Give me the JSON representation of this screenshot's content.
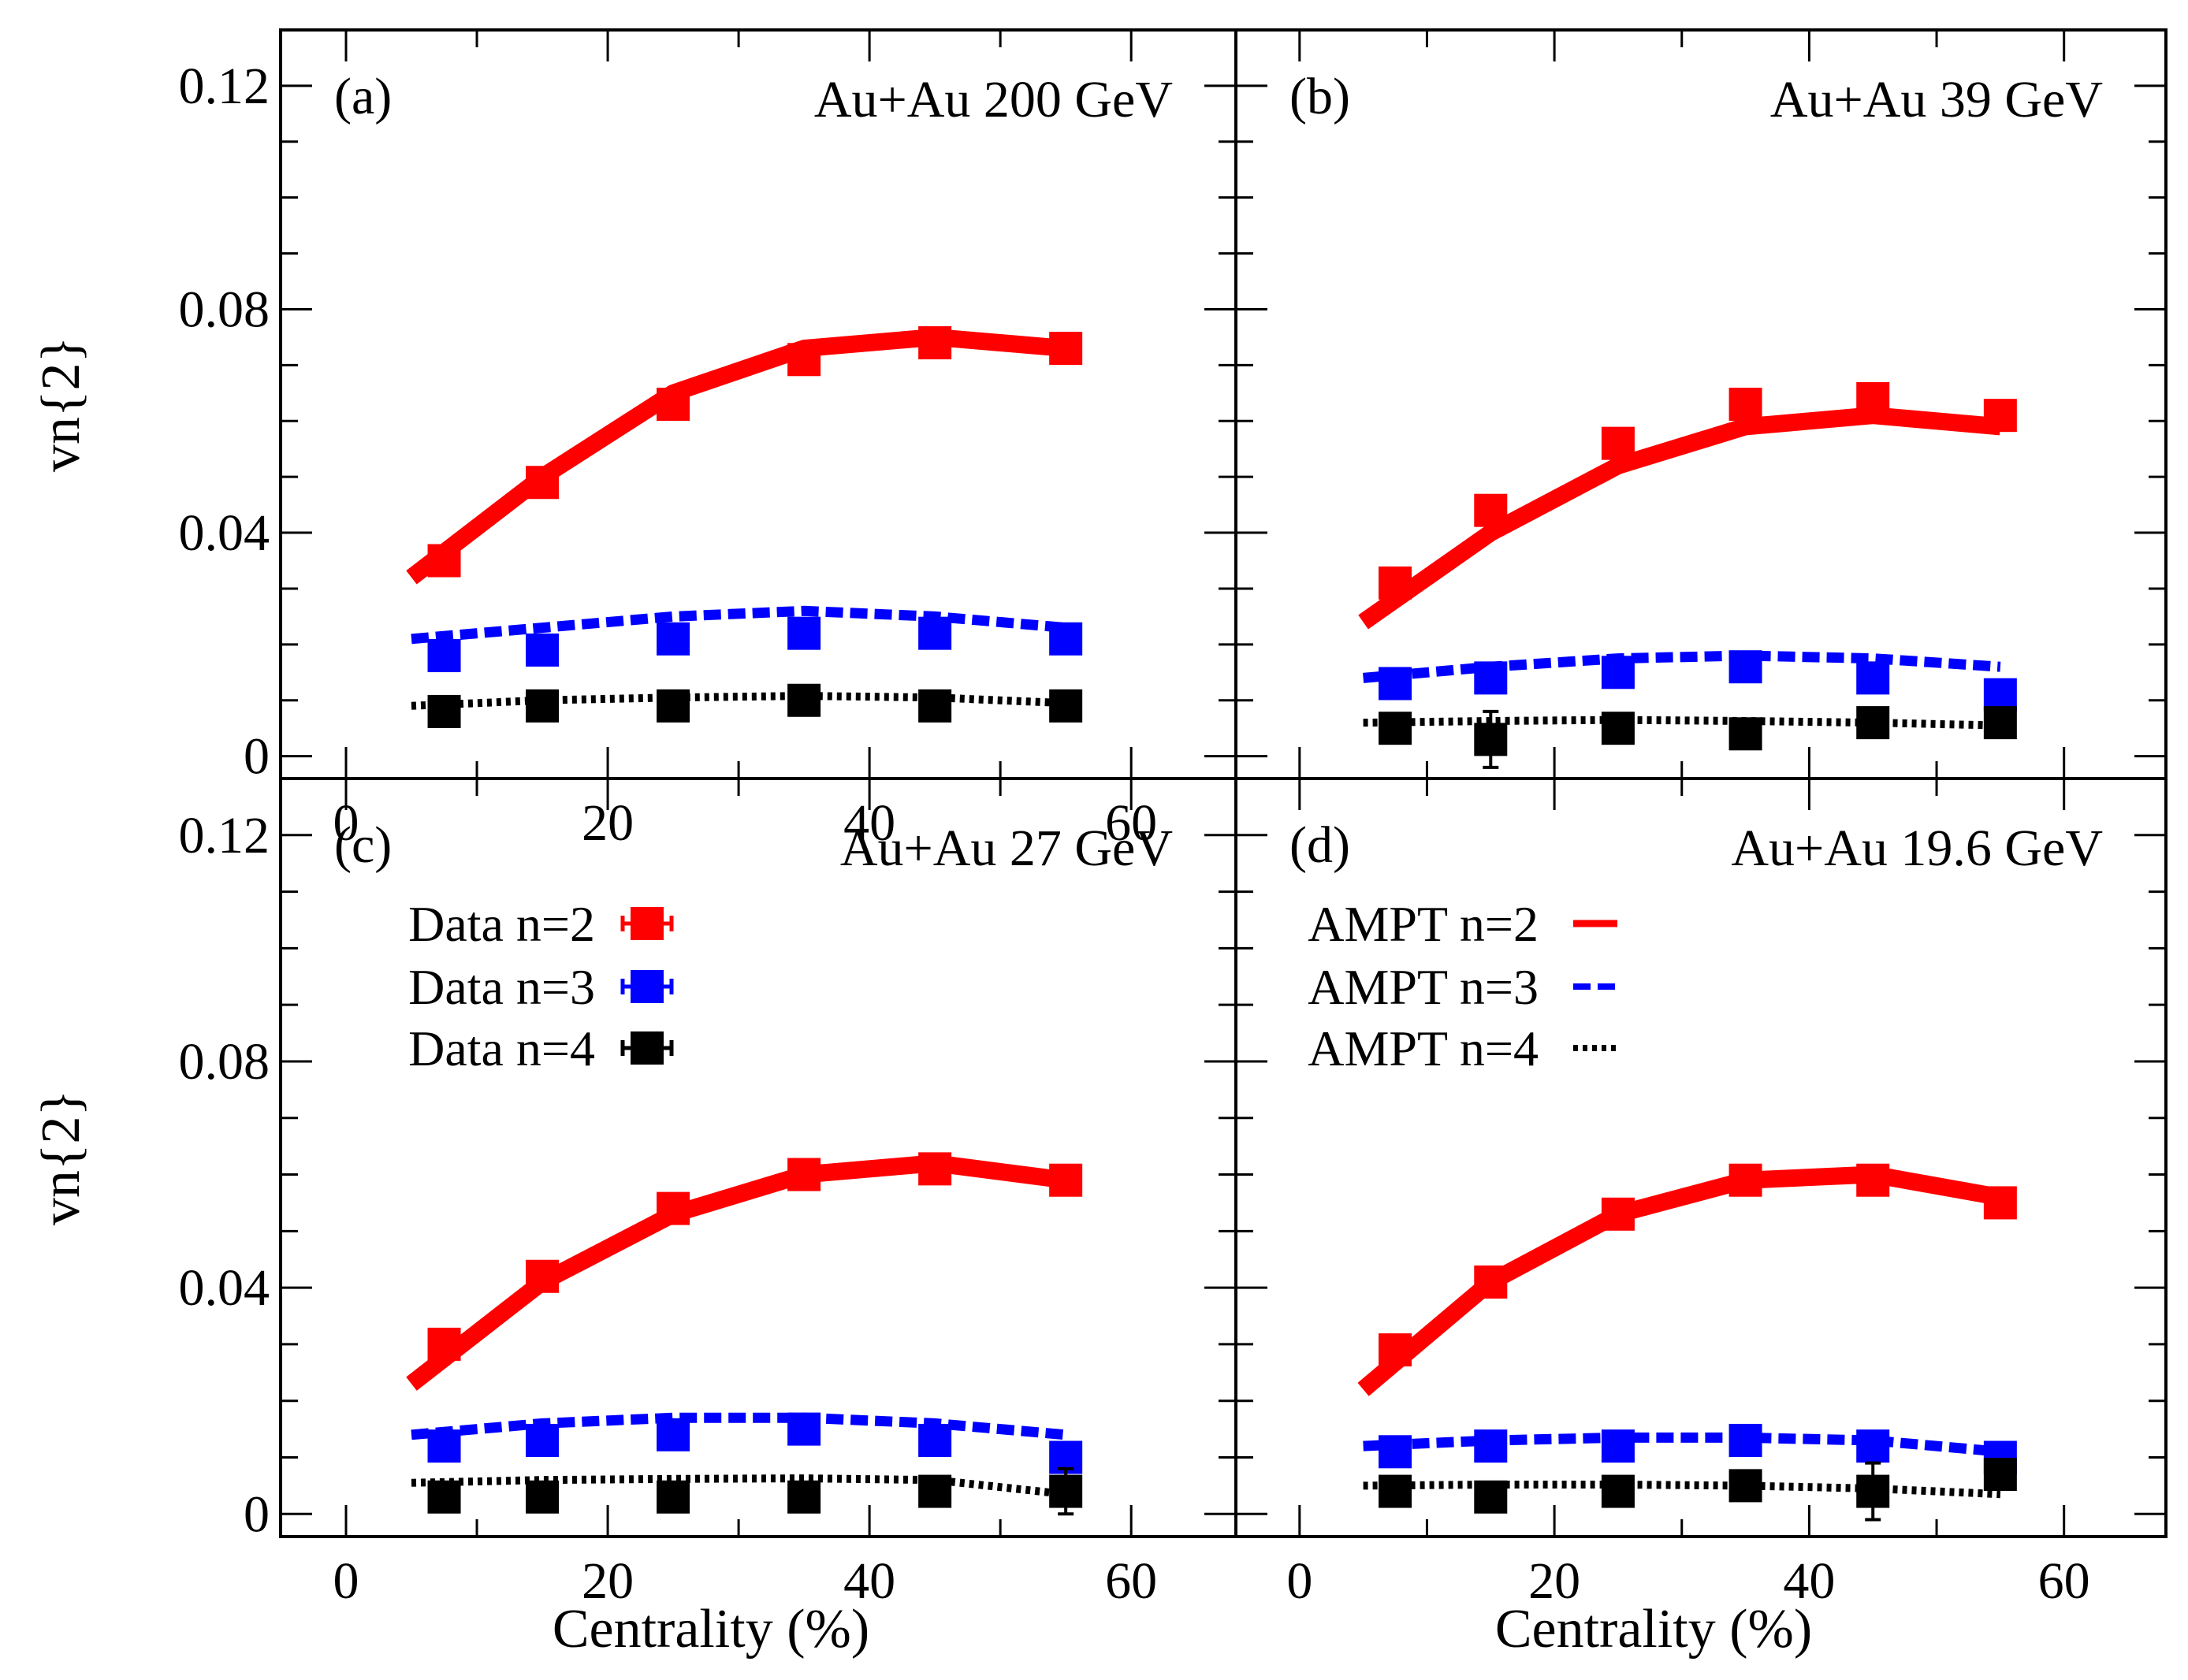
{
  "chart_data": [
    {
      "type": "line",
      "panel_label": "(a)",
      "title": "Au+Au 200 GeV",
      "xlabel": "",
      "ylabel": "vn{2}",
      "xlim": [
        -5,
        68
      ],
      "ylim": [
        -0.004,
        0.13
      ],
      "xticks": [
        "0",
        "20",
        "40",
        "60"
      ],
      "yticks": [
        "0",
        "0.04",
        "0.08",
        "0.12"
      ],
      "data_x": [
        7.5,
        15,
        25,
        35,
        45,
        55
      ],
      "series": [
        {
          "name": "Data n=2",
          "kind": "data",
          "color": "#ff0000",
          "values": [
            0.035,
            0.049,
            0.063,
            0.071,
            0.074,
            0.073
          ],
          "errors": [
            0.001,
            0.001,
            0.001,
            0.001,
            0.001,
            0.001
          ]
        },
        {
          "name": "Data n=3",
          "kind": "data",
          "color": "#0000ff",
          "values": [
            0.018,
            0.019,
            0.021,
            0.022,
            0.022,
            0.021
          ],
          "errors": [
            0.001,
            0.001,
            0.001,
            0.001,
            0.001,
            0.001
          ]
        },
        {
          "name": "Data n=4",
          "kind": "data",
          "color": "#000000",
          "values": [
            0.008,
            0.009,
            0.009,
            0.01,
            0.009,
            0.009
          ],
          "errors": [
            0.001,
            0.001,
            0.001,
            0.001,
            0.001,
            0.001
          ]
        }
      ],
      "model_x": [
        5,
        15,
        25,
        35,
        45,
        55
      ],
      "model_series": [
        {
          "name": "AMPT n=2",
          "style": "solid",
          "color": "#ff0000",
          "values": [
            0.032,
            0.05,
            0.065,
            0.073,
            0.075,
            0.073
          ]
        },
        {
          "name": "AMPT n=3",
          "style": "dashed",
          "color": "#0000ff",
          "values": [
            0.021,
            0.023,
            0.025,
            0.026,
            0.025,
            0.023
          ]
        },
        {
          "name": "AMPT n=4",
          "style": "dotted",
          "color": "#000000",
          "values": [
            0.009,
            0.01,
            0.0105,
            0.0108,
            0.0105,
            0.0095
          ]
        }
      ]
    },
    {
      "type": "line",
      "panel_label": "(b)",
      "title": "Au+Au 39 GeV",
      "xlabel": "",
      "ylabel": "",
      "xlim": [
        -5,
        68
      ],
      "ylim": [
        -0.004,
        0.13
      ],
      "xticks": [],
      "yticks": [],
      "data_x": [
        7.5,
        15,
        25,
        35,
        45,
        55
      ],
      "series": [
        {
          "name": "Data n=2",
          "kind": "data",
          "color": "#ff0000",
          "values": [
            0.031,
            0.044,
            0.056,
            0.063,
            0.064,
            0.061
          ],
          "errors": [
            0.001,
            0.001,
            0.001,
            0.001,
            0.001,
            0.001
          ]
        },
        {
          "name": "Data n=3",
          "kind": "data",
          "color": "#0000ff",
          "values": [
            0.013,
            0.014,
            0.015,
            0.016,
            0.014,
            0.011
          ],
          "errors": [
            0.001,
            0.001,
            0.001,
            0.001,
            0.001,
            0.001
          ]
        },
        {
          "name": "Data n=4",
          "kind": "data",
          "color": "#000000",
          "values": [
            0.005,
            0.003,
            0.005,
            0.004,
            0.006,
            0.006
          ],
          "errors": [
            0.001,
            0.005,
            0.001,
            0.002,
            0.001,
            0.001
          ]
        }
      ],
      "model_x": [
        5,
        15,
        25,
        35,
        45,
        55
      ],
      "model_series": [
        {
          "name": "AMPT n=2",
          "style": "solid",
          "color": "#ff0000",
          "values": [
            0.024,
            0.04,
            0.052,
            0.059,
            0.061,
            0.059
          ]
        },
        {
          "name": "AMPT n=3",
          "style": "dashed",
          "color": "#0000ff",
          "values": [
            0.014,
            0.016,
            0.0175,
            0.018,
            0.0175,
            0.016
          ]
        },
        {
          "name": "AMPT n=4",
          "style": "dotted",
          "color": "#000000",
          "values": [
            0.006,
            0.0063,
            0.0065,
            0.0063,
            0.006,
            0.0055
          ]
        }
      ]
    },
    {
      "type": "line",
      "panel_label": "(c)",
      "title": "Au+Au 27 GeV",
      "xlabel": "Centrality (%)",
      "ylabel": "vn{2}",
      "xlim": [
        -5,
        68
      ],
      "ylim": [
        -0.004,
        0.13
      ],
      "xticks": [
        "0",
        "20",
        "40",
        "60"
      ],
      "yticks": [
        "0",
        "0.04",
        "0.08",
        "0.12"
      ],
      "data_x": [
        7.5,
        15,
        25,
        35,
        45,
        55
      ],
      "series": [
        {
          "name": "Data n=2",
          "kind": "data",
          "color": "#ff0000",
          "values": [
            0.03,
            0.042,
            0.054,
            0.06,
            0.061,
            0.059
          ],
          "errors": [
            0.001,
            0.001,
            0.001,
            0.001,
            0.001,
            0.001
          ]
        },
        {
          "name": "Data n=3",
          "kind": "data",
          "color": "#0000ff",
          "values": [
            0.012,
            0.013,
            0.014,
            0.015,
            0.013,
            0.01
          ],
          "errors": [
            0.001,
            0.001,
            0.001,
            0.001,
            0.001,
            0.001
          ]
        },
        {
          "name": "Data n=4",
          "kind": "data",
          "color": "#000000",
          "values": [
            0.003,
            0.003,
            0.003,
            0.003,
            0.004,
            0.004
          ],
          "errors": [
            0.001,
            0.001,
            0.001,
            0.001,
            0.001,
            0.004
          ]
        }
      ],
      "model_x": [
        5,
        15,
        25,
        35,
        45,
        55
      ],
      "model_series": [
        {
          "name": "AMPT n=2",
          "style": "solid",
          "color": "#ff0000",
          "values": [
            0.023,
            0.041,
            0.053,
            0.06,
            0.062,
            0.059
          ]
        },
        {
          "name": "AMPT n=3",
          "style": "dashed",
          "color": "#0000ff",
          "values": [
            0.014,
            0.016,
            0.017,
            0.017,
            0.016,
            0.014
          ]
        },
        {
          "name": "AMPT n=4",
          "style": "dotted",
          "color": "#000000",
          "values": [
            0.0055,
            0.006,
            0.0062,
            0.0063,
            0.006,
            0.0035
          ]
        }
      ]
    },
    {
      "type": "line",
      "panel_label": "(d)",
      "title": "Au+Au 19.6 GeV",
      "xlabel": "Centrality (%)",
      "ylabel": "",
      "xlim": [
        -5,
        68
      ],
      "ylim": [
        -0.004,
        0.13
      ],
      "xticks": [
        "0",
        "20",
        "40",
        "60"
      ],
      "yticks": [],
      "data_x": [
        7.5,
        15,
        25,
        35,
        45,
        55
      ],
      "series": [
        {
          "name": "Data n=2",
          "kind": "data",
          "color": "#ff0000",
          "values": [
            0.029,
            0.041,
            0.053,
            0.059,
            0.059,
            0.055
          ],
          "errors": [
            0.001,
            0.001,
            0.001,
            0.001,
            0.001,
            0.001
          ]
        },
        {
          "name": "Data n=3",
          "kind": "data",
          "color": "#0000ff",
          "values": [
            0.011,
            0.012,
            0.012,
            0.013,
            0.012,
            0.01
          ],
          "errors": [
            0.001,
            0.001,
            0.001,
            0.001,
            0.001,
            0.001
          ]
        },
        {
          "name": "Data n=4",
          "kind": "data",
          "color": "#000000",
          "values": [
            0.004,
            0.003,
            0.004,
            0.005,
            0.004,
            0.007
          ],
          "errors": [
            0.001,
            0.001,
            0.001,
            0.001,
            0.005,
            0.002
          ]
        }
      ],
      "model_x": [
        5,
        15,
        25,
        35,
        45,
        55
      ],
      "model_series": [
        {
          "name": "AMPT n=2",
          "style": "solid",
          "color": "#ff0000",
          "values": [
            0.022,
            0.041,
            0.053,
            0.059,
            0.06,
            0.056
          ]
        },
        {
          "name": "AMPT n=3",
          "style": "dashed",
          "color": "#0000ff",
          "values": [
            0.012,
            0.013,
            0.0135,
            0.0135,
            0.013,
            0.011
          ]
        },
        {
          "name": "AMPT n=4",
          "style": "dotted",
          "color": "#000000",
          "values": [
            0.005,
            0.0052,
            0.0052,
            0.005,
            0.0045,
            0.0035
          ]
        }
      ]
    }
  ],
  "legends": {
    "data": {
      "placement": "panel (c), upper-left",
      "entries": [
        "Data n=2",
        "Data n=3",
        "Data n=4"
      ]
    },
    "model": {
      "placement": "panel (d), upper-left",
      "entries": [
        "AMPT n=2",
        "AMPT n=3",
        "AMPT n=4"
      ]
    }
  }
}
